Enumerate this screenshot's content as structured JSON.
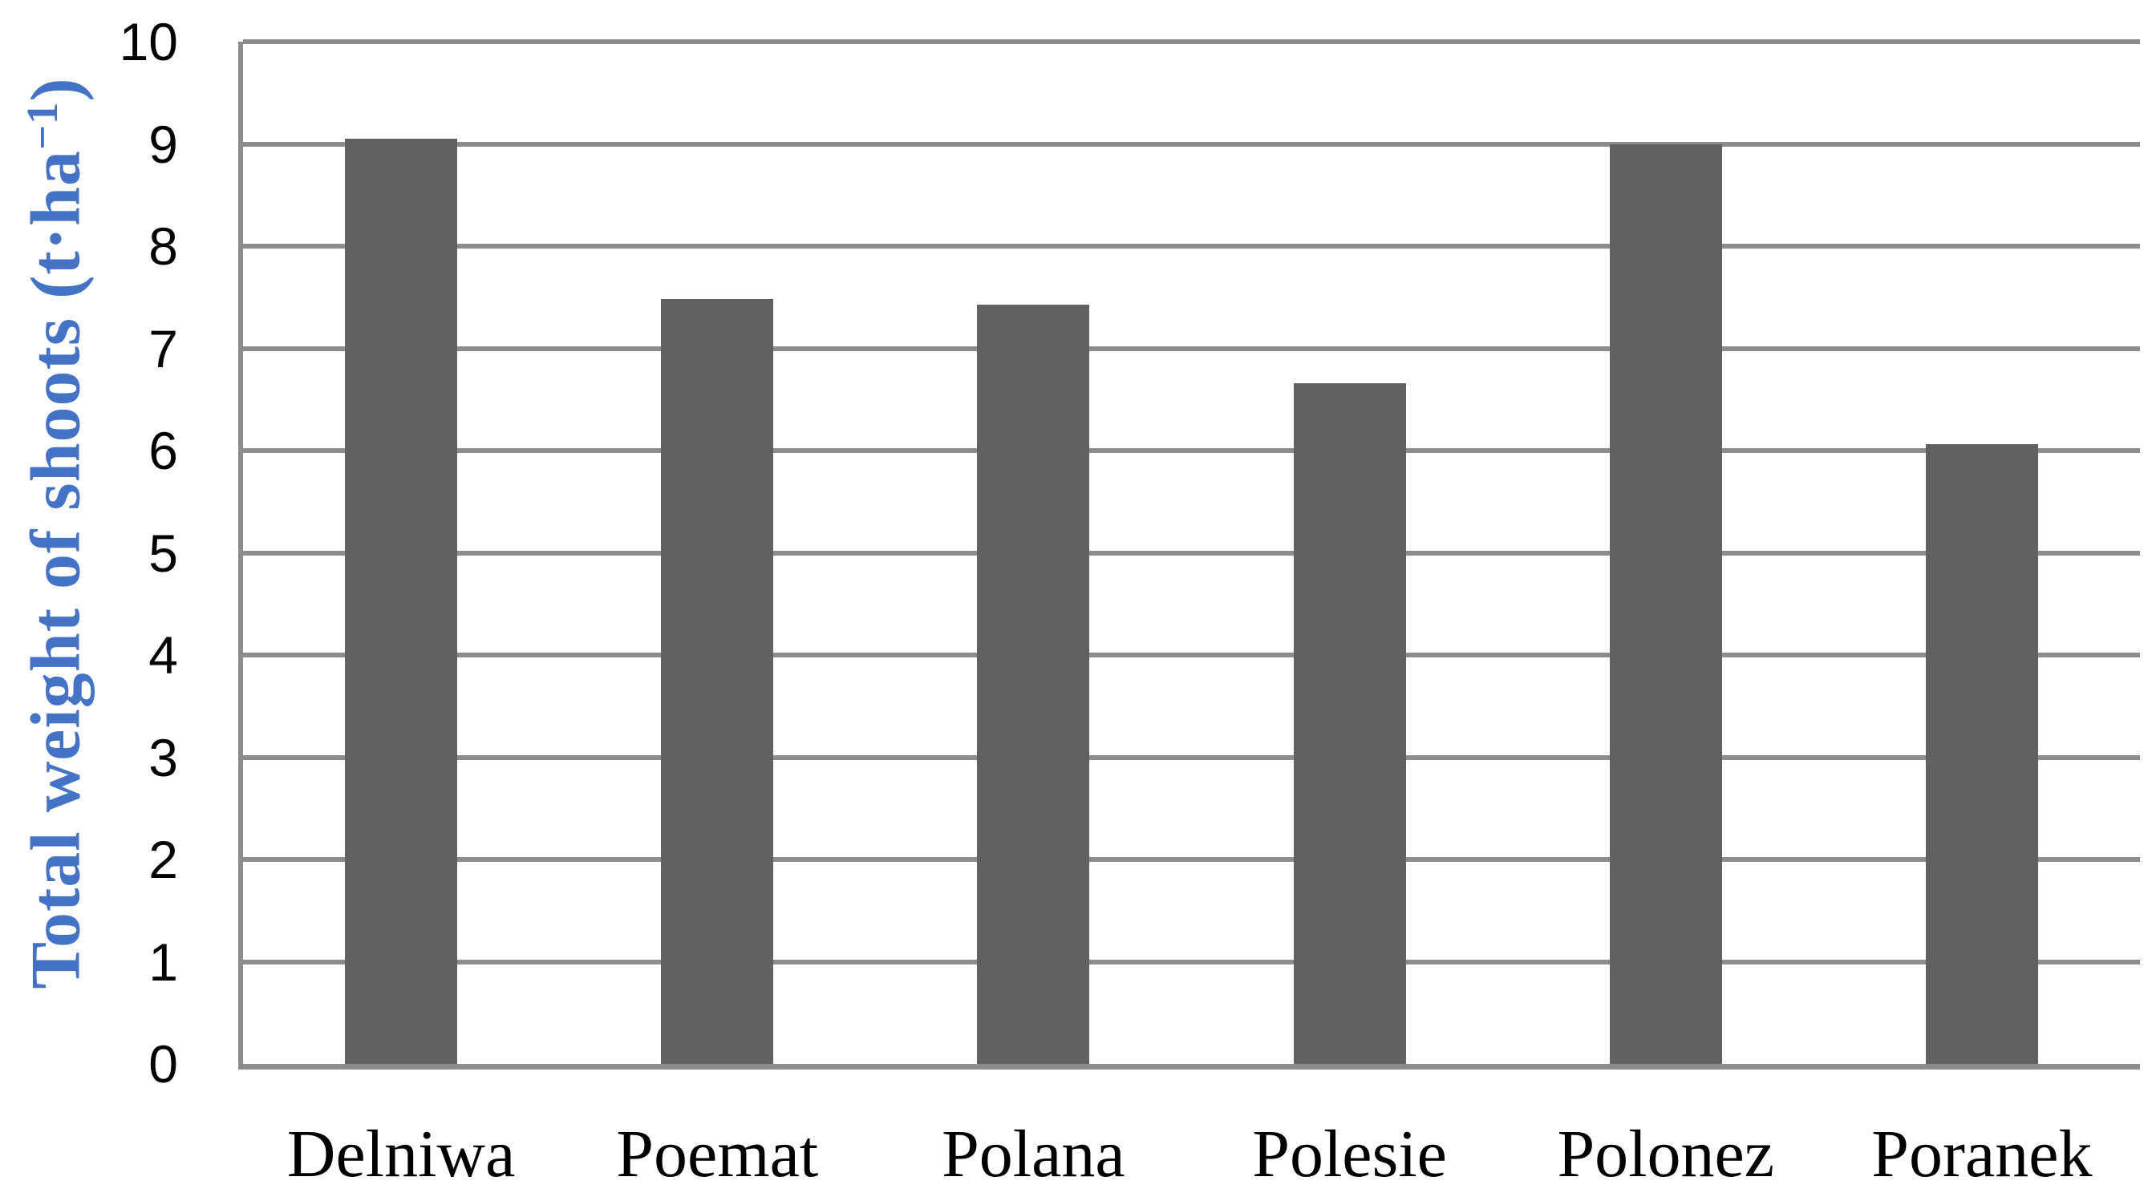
{
  "chart_data": {
    "type": "bar",
    "title": "",
    "categories": [
      "Delniwa",
      "Poemat",
      "Polana",
      "Polesie",
      "Polonez",
      "Poranek"
    ],
    "values": [
      9.05,
      7.48,
      7.43,
      6.66,
      9.0,
      6.06
    ],
    "xlabel": "",
    "ylabel": "Total weight of shoots (t·ha⁻¹)",
    "ylabel_parts": {
      "base": "Total weight of shoots (t·ha",
      "superscript": "−1",
      "close": ")"
    },
    "ylim": [
      0,
      10
    ],
    "ytick_step": 1,
    "yticks": [
      "0",
      "1",
      "2",
      "3",
      "4",
      "5",
      "6",
      "7",
      "8",
      "9",
      "10"
    ],
    "grid": "horizontal",
    "legend_position": "none",
    "colors": {
      "bar": "#616161",
      "gridline": "#8C8C8C",
      "axis": "#8C8C8C",
      "tick_label": "#000000",
      "category_label": "#000000",
      "ylabel_text": "#4472C4",
      "background": "#FFFFFF"
    }
  }
}
